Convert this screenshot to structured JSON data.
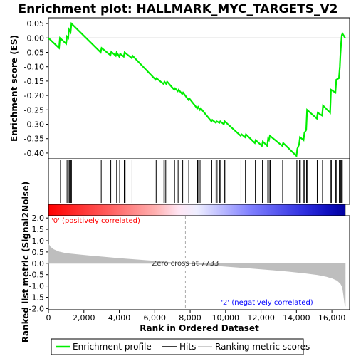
{
  "chart_data": {
    "type": "line",
    "title": "Enrichment plot: HALLMARK_MYC_TARGETS_V2",
    "es_panel": {
      "ylabel": "Enrichment score (ES)",
      "ylim": [
        -0.42,
        0.07
      ],
      "yticks": [
        0.05,
        0.0,
        -0.05,
        -0.1,
        -0.15,
        -0.2,
        -0.25,
        -0.3,
        -0.35,
        -0.4
      ],
      "ytick_labels": [
        "0.05",
        "0.00",
        "-0.05",
        "-0.10",
        "-0.15",
        "-0.20",
        "-0.25",
        "-0.30",
        "-0.35",
        "-0.40"
      ],
      "line_color": "#00ee00",
      "series": [
        {
          "x": [
            0,
            600,
            650,
            1000,
            1050,
            1120,
            1150,
            1250,
            1300,
            2950,
            3000,
            3500,
            3550,
            3800,
            3850,
            4000,
            4050,
            4250,
            4300,
            4700,
            4750,
            6050,
            6100,
            6500,
            6550,
            6650,
            6700,
            7100,
            7150,
            7300,
            7350,
            7550,
            7600,
            7900,
            7950,
            8400,
            8450,
            8550,
            8600,
            9200,
            9250,
            9450,
            9500,
            9650,
            9700,
            9900,
            9950,
            10850,
            10900,
            11100,
            11150,
            11650,
            11700,
            12050,
            12100,
            12350,
            12400,
            12450,
            12500,
            13200,
            13250,
            14000,
            14050,
            14150,
            14200,
            14400,
            14450,
            14550,
            14600,
            15150,
            15200,
            15450,
            15500,
            15900,
            15950,
            16200,
            16250,
            16400,
            16450,
            16480,
            16520,
            16560,
            16600,
            16750
          ],
          "y": [
            0.0,
            -0.035,
            0.0,
            -0.02,
            0.005,
            0.0,
            0.03,
            0.02,
            0.05,
            -0.05,
            -0.035,
            -0.06,
            -0.048,
            -0.062,
            -0.05,
            -0.065,
            -0.055,
            -0.065,
            -0.05,
            -0.07,
            -0.062,
            -0.145,
            -0.14,
            -0.16,
            -0.152,
            -0.16,
            -0.152,
            -0.18,
            -0.175,
            -0.185,
            -0.18,
            -0.195,
            -0.19,
            -0.215,
            -0.21,
            -0.245,
            -0.24,
            -0.25,
            -0.245,
            -0.29,
            -0.285,
            -0.295,
            -0.29,
            -0.295,
            -0.29,
            -0.3,
            -0.29,
            -0.34,
            -0.335,
            -0.345,
            -0.335,
            -0.365,
            -0.355,
            -0.375,
            -0.36,
            -0.375,
            -0.35,
            -0.355,
            -0.34,
            -0.375,
            -0.365,
            -0.41,
            -0.385,
            -0.37,
            -0.345,
            -0.355,
            -0.33,
            -0.32,
            -0.25,
            -0.28,
            -0.26,
            -0.27,
            -0.235,
            -0.26,
            -0.18,
            -0.19,
            -0.145,
            -0.14,
            -0.1,
            -0.06,
            -0.02,
            0.01,
            0.015,
            0.0
          ]
        }
      ]
    },
    "hits": {
      "positions": [
        680,
        1050,
        1120,
        1180,
        1260,
        1300,
        2980,
        3520,
        3850,
        4020,
        4280,
        4330,
        4720,
        6080,
        6520,
        6600,
        6680,
        7120,
        7320,
        7580,
        7920,
        8420,
        8480,
        8560,
        8620,
        9220,
        9460,
        9520,
        9660,
        9720,
        9920,
        9960,
        10870,
        11120,
        11680,
        12080,
        12380,
        12460,
        12520,
        13220,
        14020,
        14080,
        14170,
        14220,
        14420,
        14470,
        14570,
        14620,
        15170,
        15470,
        15920,
        15970,
        16220,
        16270,
        16420,
        16470,
        16510,
        16550,
        16590
      ],
      "color": "#000000"
    },
    "ranked_metric": {
      "ylabel": "Ranked list metric (Signal2Noise)",
      "ylim": [
        -2.05,
        2.1
      ],
      "yticks": [
        2.0,
        1.5,
        1.0,
        0.5,
        0.0,
        -0.5,
        -1.0,
        -1.5,
        -2.0
      ],
      "ytick_labels": [
        "2.0",
        "1.5",
        "1.0",
        "0.5",
        "0.0",
        "-0.5",
        "-1.0",
        "-1.5",
        "-2.0"
      ],
      "fill_color": "#bebebe",
      "curve": {
        "x": [
          0,
          100,
          300,
          600,
          1000,
          2000,
          3000,
          4000,
          5000,
          6000,
          7000,
          7733,
          8500,
          9500,
          10500,
          11500,
          12500,
          13500,
          14500,
          15200,
          15700,
          16000,
          16300,
          16500,
          16600,
          16650,
          16700,
          16750
        ],
        "y": [
          0.85,
          0.72,
          0.6,
          0.5,
          0.43,
          0.35,
          0.28,
          0.21,
          0.15,
          0.09,
          0.03,
          0.0,
          -0.04,
          -0.1,
          -0.16,
          -0.22,
          -0.28,
          -0.35,
          -0.43,
          -0.5,
          -0.58,
          -0.65,
          -0.75,
          -0.9,
          -1.05,
          -1.3,
          -1.6,
          -1.9
        ]
      },
      "zero_cross": 7733,
      "zero_cross_label": "Zero cross at 7733",
      "positive_label": "'0' (positively correlated)",
      "positive_color": "#ff0000",
      "negative_label": "'2' (negatively correlated)",
      "negative_color": "#0000ff"
    },
    "xaxis": {
      "xlabel": "Rank in Ordered Dataset",
      "xlim": [
        0,
        17000
      ],
      "ticks": [
        0,
        2000,
        4000,
        6000,
        8000,
        10000,
        12000,
        14000,
        16000
      ],
      "tick_labels": [
        "0",
        "2,000",
        "4,000",
        "6,000",
        "8,000",
        "10,000",
        "12,000",
        "14,000",
        "16,000"
      ],
      "n_genes": 16750
    },
    "gradient_bar": {
      "stops": [
        {
          "offset": 0.0,
          "color": "#ff0000"
        },
        {
          "offset": 0.2,
          "color": "#ff5c5c"
        },
        {
          "offset": 0.36,
          "color": "#ffb0b0"
        },
        {
          "offset": 0.44,
          "color": "#ffe6f4"
        },
        {
          "offset": 0.5,
          "color": "#eeeeff"
        },
        {
          "offset": 0.68,
          "color": "#8080ff"
        },
        {
          "offset": 0.86,
          "color": "#3030e0"
        },
        {
          "offset": 0.94,
          "color": "#1010c0"
        },
        {
          "offset": 1.0,
          "color": "#0000a0"
        }
      ]
    },
    "legend": {
      "items": [
        {
          "label": "Enrichment profile",
          "color": "#00ee00",
          "style": "line"
        },
        {
          "label": "Hits",
          "color": "#000000",
          "style": "line"
        },
        {
          "label": "Ranking metric scores",
          "color": "#bebebe",
          "style": "line"
        }
      ]
    }
  }
}
